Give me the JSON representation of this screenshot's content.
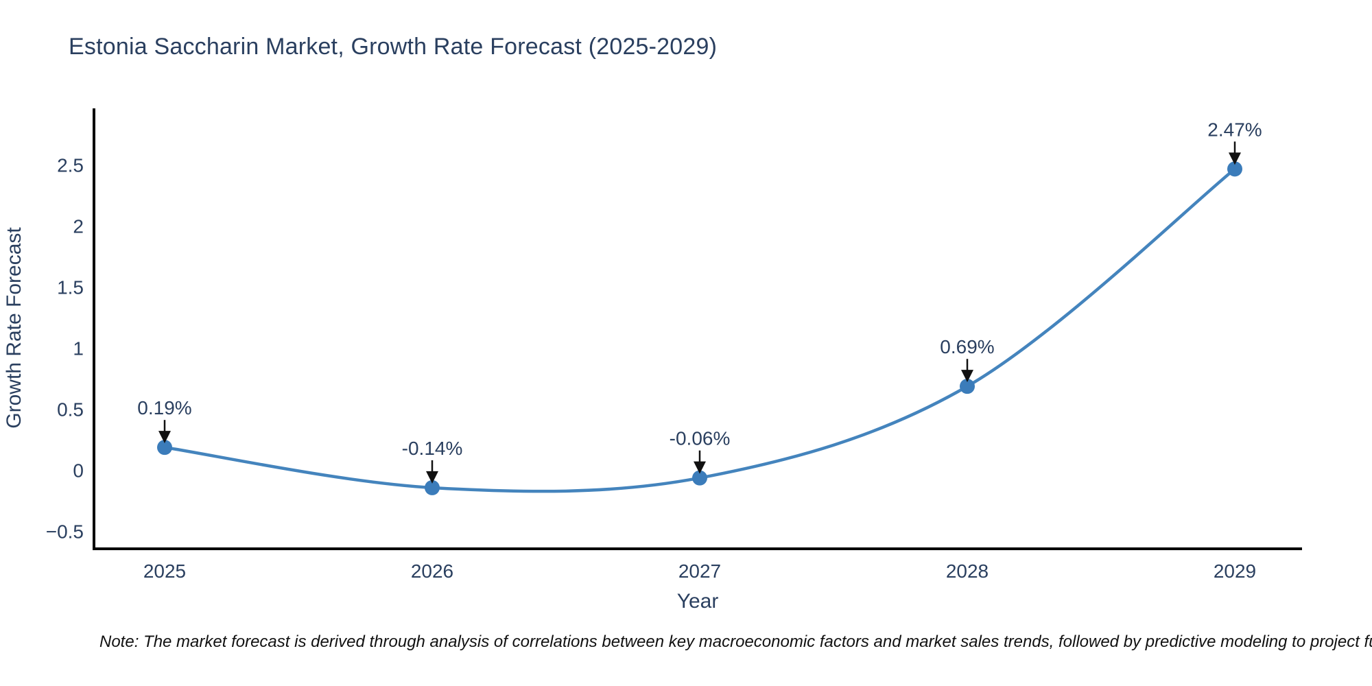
{
  "chart_data": {
    "type": "line",
    "title": "Estonia Saccharin Market, Growth Rate Forecast (2025-2029)",
    "xlabel": "Year",
    "ylabel": "Growth Rate Forecast",
    "categories": [
      "2025",
      "2026",
      "2027",
      "2028",
      "2029"
    ],
    "series": [
      {
        "name": "Growth Rate Forecast",
        "values": [
          0.19,
          -0.14,
          -0.06,
          0.69,
          2.47
        ],
        "point_labels": [
          "0.19%",
          "-0.14%",
          "-0.06%",
          "0.69%",
          "2.47%"
        ]
      }
    ],
    "y_ticks": [
      {
        "value": 2.5,
        "label": "2.5"
      },
      {
        "value": 2.0,
        "label": "2"
      },
      {
        "value": 1.5,
        "label": "1.5"
      },
      {
        "value": 1.0,
        "label": "1"
      },
      {
        "value": 0.5,
        "label": "0.5"
      },
      {
        "value": 0.0,
        "label": "0"
      },
      {
        "value": -0.5,
        "label": "−0.5"
      }
    ],
    "ylim": [
      -0.64,
      2.96
    ],
    "grid": false,
    "legend": false,
    "line_shape": "spline",
    "colors": {
      "line": "#4484bd",
      "marker": "#3b7cba",
      "axis": "#000000",
      "text": "#2a3f5f",
      "arrow": "#111111"
    },
    "note": "Note: The market forecast is derived through analysis of correlations between key macroeconomic factors and market sales trends, followed by predictive modeling to project future sales."
  }
}
